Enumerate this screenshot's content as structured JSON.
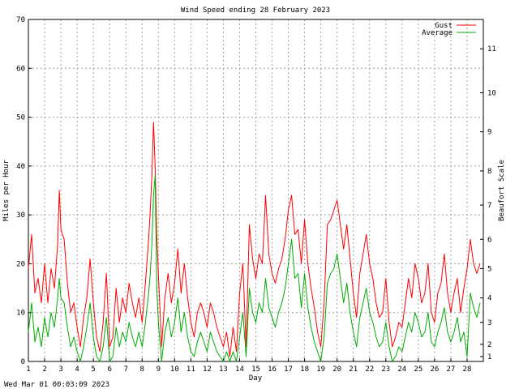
{
  "chart_data": {
    "type": "line",
    "title": "Wind Speed ending 28 February 2023",
    "xlabel": "Day",
    "ylabel": "Miles per Hour",
    "y2label": "Beaufort Scale",
    "footer": "Wed Mar 01 00:03:09 2023",
    "xlim": [
      1,
      29
    ],
    "ylim": [
      0,
      70
    ],
    "x_ticks": [
      1,
      2,
      3,
      4,
      5,
      6,
      7,
      8,
      9,
      10,
      11,
      12,
      13,
      14,
      15,
      16,
      17,
      18,
      19,
      20,
      21,
      22,
      23,
      24,
      25,
      26,
      27,
      28
    ],
    "y_ticks": [
      0,
      10,
      20,
      30,
      40,
      50,
      60,
      70
    ],
    "beaufort_ticks": [
      {
        "label": "1",
        "mph": 1
      },
      {
        "label": "2",
        "mph": 3.5
      },
      {
        "label": "3",
        "mph": 8
      },
      {
        "label": "4",
        "mph": 13
      },
      {
        "label": "5",
        "mph": 19
      },
      {
        "label": "6",
        "mph": 25
      },
      {
        "label": "7",
        "mph": 32
      },
      {
        "label": "8",
        "mph": 39
      },
      {
        "label": "9",
        "mph": 47
      },
      {
        "label": "10",
        "mph": 55
      },
      {
        "label": "11",
        "mph": 64
      }
    ],
    "grid": true,
    "legend_position": "top-right",
    "series": [
      {
        "name": "Gust",
        "color": "#ff0000",
        "points": [
          [
            1.0,
            19
          ],
          [
            1.2,
            26
          ],
          [
            1.4,
            14
          ],
          [
            1.6,
            17
          ],
          [
            1.8,
            12
          ],
          [
            2.0,
            20
          ],
          [
            2.2,
            12
          ],
          [
            2.4,
            19
          ],
          [
            2.6,
            15
          ],
          [
            2.8,
            24
          ],
          [
            2.9,
            35
          ],
          [
            3.0,
            27
          ],
          [
            3.2,
            25
          ],
          [
            3.4,
            16
          ],
          [
            3.6,
            10
          ],
          [
            3.8,
            12
          ],
          [
            4.0,
            7
          ],
          [
            4.2,
            3
          ],
          [
            4.4,
            9
          ],
          [
            4.6,
            13
          ],
          [
            4.8,
            21
          ],
          [
            5.0,
            12
          ],
          [
            5.2,
            5
          ],
          [
            5.4,
            2
          ],
          [
            5.6,
            8
          ],
          [
            5.8,
            18
          ],
          [
            6.0,
            3
          ],
          [
            6.2,
            5
          ],
          [
            6.4,
            15
          ],
          [
            6.6,
            8
          ],
          [
            6.8,
            13
          ],
          [
            7.0,
            10
          ],
          [
            7.2,
            16
          ],
          [
            7.4,
            12
          ],
          [
            7.6,
            9
          ],
          [
            7.8,
            13
          ],
          [
            8.0,
            8
          ],
          [
            8.2,
            16
          ],
          [
            8.4,
            25
          ],
          [
            8.5,
            31
          ],
          [
            8.6,
            38
          ],
          [
            8.7,
            49
          ],
          [
            8.8,
            40
          ],
          [
            8.9,
            26
          ],
          [
            9.0,
            18
          ],
          [
            9.2,
            3
          ],
          [
            9.4,
            13
          ],
          [
            9.6,
            18
          ],
          [
            9.8,
            12
          ],
          [
            10.0,
            16
          ],
          [
            10.2,
            23
          ],
          [
            10.4,
            14
          ],
          [
            10.6,
            20
          ],
          [
            10.8,
            13
          ],
          [
            11.0,
            8
          ],
          [
            11.2,
            5
          ],
          [
            11.4,
            10
          ],
          [
            11.6,
            12
          ],
          [
            11.8,
            10
          ],
          [
            12.0,
            7
          ],
          [
            12.2,
            12
          ],
          [
            12.4,
            10
          ],
          [
            12.6,
            7
          ],
          [
            12.8,
            5
          ],
          [
            13.0,
            3
          ],
          [
            13.2,
            6
          ],
          [
            13.4,
            1
          ],
          [
            13.6,
            7
          ],
          [
            13.8,
            2
          ],
          [
            14.0,
            14
          ],
          [
            14.2,
            20
          ],
          [
            14.4,
            3
          ],
          [
            14.6,
            28
          ],
          [
            14.8,
            21
          ],
          [
            15.0,
            17
          ],
          [
            15.2,
            22
          ],
          [
            15.4,
            20
          ],
          [
            15.6,
            34
          ],
          [
            15.8,
            22
          ],
          [
            16.0,
            18
          ],
          [
            16.2,
            16
          ],
          [
            16.4,
            19
          ],
          [
            16.6,
            21
          ],
          [
            16.8,
            25
          ],
          [
            17.0,
            31
          ],
          [
            17.2,
            34
          ],
          [
            17.4,
            26
          ],
          [
            17.6,
            27
          ],
          [
            17.8,
            20
          ],
          [
            18.0,
            29
          ],
          [
            18.2,
            20
          ],
          [
            18.4,
            15
          ],
          [
            18.6,
            11
          ],
          [
            18.8,
            6
          ],
          [
            19.0,
            3
          ],
          [
            19.2,
            12
          ],
          [
            19.4,
            28
          ],
          [
            19.6,
            29
          ],
          [
            19.8,
            31
          ],
          [
            20.0,
            33
          ],
          [
            20.2,
            28
          ],
          [
            20.4,
            23
          ],
          [
            20.6,
            28
          ],
          [
            20.8,
            21
          ],
          [
            21.0,
            14
          ],
          [
            21.2,
            9
          ],
          [
            21.4,
            18
          ],
          [
            21.6,
            22
          ],
          [
            21.8,
            26
          ],
          [
            22.0,
            20
          ],
          [
            22.2,
            17
          ],
          [
            22.4,
            12
          ],
          [
            22.6,
            9
          ],
          [
            22.8,
            10
          ],
          [
            23.0,
            17
          ],
          [
            23.2,
            8
          ],
          [
            23.4,
            3
          ],
          [
            23.6,
            5
          ],
          [
            23.8,
            8
          ],
          [
            24.0,
            7
          ],
          [
            24.2,
            12
          ],
          [
            24.4,
            17
          ],
          [
            24.6,
            13
          ],
          [
            24.8,
            20
          ],
          [
            25.0,
            17
          ],
          [
            25.2,
            12
          ],
          [
            25.4,
            14
          ],
          [
            25.6,
            20
          ],
          [
            25.8,
            10
          ],
          [
            26.0,
            8
          ],
          [
            26.2,
            14
          ],
          [
            26.4,
            16
          ],
          [
            26.6,
            22
          ],
          [
            26.8,
            14
          ],
          [
            27.0,
            10
          ],
          [
            27.2,
            14
          ],
          [
            27.4,
            17
          ],
          [
            27.6,
            10
          ],
          [
            27.8,
            15
          ],
          [
            28.0,
            19
          ],
          [
            28.2,
            25
          ],
          [
            28.4,
            20
          ],
          [
            28.6,
            18
          ],
          [
            28.8,
            20
          ]
        ]
      },
      {
        "name": "Average",
        "color": "#00aa00",
        "points": [
          [
            1.0,
            6
          ],
          [
            1.2,
            12
          ],
          [
            1.4,
            4
          ],
          [
            1.6,
            7
          ],
          [
            1.8,
            3
          ],
          [
            2.0,
            9
          ],
          [
            2.2,
            5
          ],
          [
            2.4,
            10
          ],
          [
            2.6,
            7
          ],
          [
            2.8,
            13
          ],
          [
            2.9,
            17
          ],
          [
            3.0,
            13
          ],
          [
            3.2,
            12
          ],
          [
            3.4,
            7
          ],
          [
            3.6,
            3
          ],
          [
            3.8,
            5
          ],
          [
            4.0,
            2
          ],
          [
            4.2,
            0
          ],
          [
            4.4,
            3
          ],
          [
            4.6,
            7
          ],
          [
            4.8,
            12
          ],
          [
            5.0,
            5
          ],
          [
            5.2,
            1
          ],
          [
            5.4,
            0
          ],
          [
            5.6,
            3
          ],
          [
            5.8,
            9
          ],
          [
            6.0,
            0
          ],
          [
            6.2,
            1
          ],
          [
            6.4,
            7
          ],
          [
            6.6,
            3
          ],
          [
            6.8,
            6
          ],
          [
            7.0,
            4
          ],
          [
            7.2,
            8
          ],
          [
            7.4,
            5
          ],
          [
            7.6,
            3
          ],
          [
            7.8,
            6
          ],
          [
            8.0,
            3
          ],
          [
            8.2,
            8
          ],
          [
            8.4,
            14
          ],
          [
            8.5,
            18
          ],
          [
            8.6,
            24
          ],
          [
            8.7,
            34
          ],
          [
            8.8,
            38
          ],
          [
            8.9,
            15
          ],
          [
            9.0,
            8
          ],
          [
            9.2,
            0
          ],
          [
            9.4,
            6
          ],
          [
            9.6,
            9
          ],
          [
            9.8,
            5
          ],
          [
            10.0,
            8
          ],
          [
            10.2,
            13
          ],
          [
            10.4,
            6
          ],
          [
            10.6,
            10
          ],
          [
            10.8,
            5
          ],
          [
            11.0,
            2
          ],
          [
            11.2,
            1
          ],
          [
            11.4,
            4
          ],
          [
            11.6,
            6
          ],
          [
            11.8,
            4
          ],
          [
            12.0,
            2
          ],
          [
            12.2,
            6
          ],
          [
            12.4,
            4
          ],
          [
            12.6,
            2
          ],
          [
            12.8,
            1
          ],
          [
            13.0,
            0
          ],
          [
            13.2,
            2
          ],
          [
            13.4,
            0
          ],
          [
            13.6,
            2
          ],
          [
            13.8,
            0
          ],
          [
            14.0,
            5
          ],
          [
            14.2,
            10
          ],
          [
            14.4,
            1
          ],
          [
            14.6,
            15
          ],
          [
            14.8,
            10
          ],
          [
            15.0,
            8
          ],
          [
            15.2,
            12
          ],
          [
            15.4,
            10
          ],
          [
            15.6,
            17
          ],
          [
            15.8,
            11
          ],
          [
            16.0,
            9
          ],
          [
            16.2,
            7
          ],
          [
            16.4,
            10
          ],
          [
            16.6,
            12
          ],
          [
            16.8,
            15
          ],
          [
            17.0,
            20
          ],
          [
            17.2,
            25
          ],
          [
            17.4,
            17
          ],
          [
            17.6,
            18
          ],
          [
            17.8,
            11
          ],
          [
            18.0,
            18
          ],
          [
            18.2,
            11
          ],
          [
            18.4,
            7
          ],
          [
            18.6,
            4
          ],
          [
            18.8,
            2
          ],
          [
            19.0,
            0
          ],
          [
            19.2,
            5
          ],
          [
            19.4,
            16
          ],
          [
            19.6,
            18
          ],
          [
            19.8,
            19
          ],
          [
            20.0,
            22
          ],
          [
            20.2,
            17
          ],
          [
            20.4,
            12
          ],
          [
            20.6,
            16
          ],
          [
            20.8,
            10
          ],
          [
            21.0,
            6
          ],
          [
            21.2,
            3
          ],
          [
            21.4,
            9
          ],
          [
            21.6,
            12
          ],
          [
            21.8,
            15
          ],
          [
            22.0,
            10
          ],
          [
            22.2,
            8
          ],
          [
            22.4,
            5
          ],
          [
            22.6,
            3
          ],
          [
            22.8,
            4
          ],
          [
            23.0,
            8
          ],
          [
            23.2,
            3
          ],
          [
            23.4,
            0
          ],
          [
            23.6,
            1
          ],
          [
            23.8,
            3
          ],
          [
            24.0,
            2
          ],
          [
            24.2,
            5
          ],
          [
            24.4,
            8
          ],
          [
            24.6,
            6
          ],
          [
            24.8,
            10
          ],
          [
            25.0,
            8
          ],
          [
            25.2,
            5
          ],
          [
            25.4,
            6
          ],
          [
            25.6,
            10
          ],
          [
            25.8,
            4
          ],
          [
            26.0,
            3
          ],
          [
            26.2,
            6
          ],
          [
            26.4,
            8
          ],
          [
            26.6,
            11
          ],
          [
            26.8,
            6
          ],
          [
            27.0,
            4
          ],
          [
            27.2,
            6
          ],
          [
            27.4,
            9
          ],
          [
            27.6,
            4
          ],
          [
            27.8,
            6
          ],
          [
            28.0,
            1
          ],
          [
            28.2,
            14
          ],
          [
            28.4,
            11
          ],
          [
            28.6,
            9
          ],
          [
            28.8,
            12
          ]
        ]
      }
    ]
  }
}
